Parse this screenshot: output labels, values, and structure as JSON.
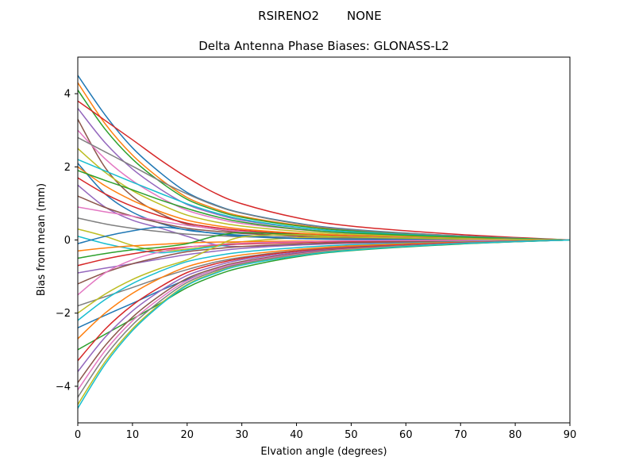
{
  "figure": {
    "suptitle_left": "RSIRENO2",
    "suptitle_right": "NONE"
  },
  "chart_data": {
    "type": "line",
    "suptitle": "RSIRENO2        NONE",
    "title": "Delta Antenna Phase Biases: GLONASS-L2",
    "xlabel": "Elvation angle (degrees)",
    "ylabel": "Bias from mean (mm)",
    "xlim": [
      0,
      90
    ],
    "ylim": [
      -5,
      5
    ],
    "xticks": [
      0,
      10,
      20,
      30,
      40,
      50,
      60,
      70,
      80,
      90
    ],
    "yticks": [
      -4,
      -2,
      0,
      2,
      4
    ],
    "grid": false,
    "legend": "none",
    "x": [
      0,
      5,
      10,
      15,
      20,
      25,
      30,
      40,
      50,
      70,
      90
    ],
    "series": [
      {
        "color": "#1f77b4",
        "values": [
          4.5,
          3.42,
          2.52,
          1.85,
          1.3,
          0.97,
          0.74,
          0.46,
          0.29,
          0.11,
          0
        ]
      },
      {
        "color": "#ff7f0e",
        "values": [
          4.3,
          3.18,
          2.32,
          1.68,
          1.16,
          0.86,
          0.65,
          0.41,
          0.26,
          0.09,
          0
        ]
      },
      {
        "color": "#2ca02c",
        "values": [
          4.1,
          3.03,
          2.21,
          1.6,
          1.11,
          0.82,
          0.62,
          0.39,
          0.25,
          0.09,
          0
        ]
      },
      {
        "color": "#d62728",
        "values": [
          3.8,
          3.27,
          2.74,
          2.2,
          1.71,
          1.29,
          0.99,
          0.61,
          0.38,
          0.15,
          0
        ]
      },
      {
        "color": "#9467bd",
        "values": [
          3.6,
          2.66,
          1.94,
          1.4,
          0.97,
          0.72,
          0.54,
          0.34,
          0.22,
          0.08,
          0
        ]
      },
      {
        "color": "#8c564b",
        "values": [
          3.3,
          1.98,
          1.19,
          0.73,
          0.43,
          0.3,
          0.2,
          0.1,
          0.05,
          0.02,
          0
        ]
      },
      {
        "color": "#e377c2",
        "values": [
          3.0,
          2.22,
          1.62,
          1.17,
          0.81,
          0.6,
          0.45,
          0.29,
          0.18,
          0.07,
          0
        ]
      },
      {
        "color": "#7f7f7f",
        "values": [
          2.8,
          2.41,
          2.02,
          1.62,
          1.26,
          0.95,
          0.73,
          0.45,
          0.28,
          0.11,
          0
        ]
      },
      {
        "color": "#bcbd22",
        "values": [
          2.5,
          1.85,
          1.35,
          0.98,
          0.68,
          0.5,
          0.38,
          0.24,
          0.15,
          0.06,
          0
        ]
      },
      {
        "color": "#17becf",
        "values": [
          2.2,
          1.89,
          1.58,
          1.28,
          0.99,
          0.75,
          0.57,
          0.35,
          0.22,
          0.09,
          0
        ]
      },
      {
        "color": "#1f77b4",
        "values": [
          2.1,
          1.26,
          0.76,
          0.46,
          0.27,
          0.19,
          0.13,
          0.06,
          0.03,
          0.01,
          0
        ]
      },
      {
        "color": "#ff7f0e",
        "values": [
          2.0,
          1.48,
          1.08,
          0.78,
          0.54,
          0.4,
          0.3,
          0.19,
          0.12,
          0.04,
          0
        ]
      },
      {
        "color": "#2ca02c",
        "values": [
          1.9,
          1.63,
          1.37,
          1.1,
          0.86,
          0.65,
          0.49,
          0.3,
          0.19,
          0.08,
          0
        ]
      },
      {
        "color": "#d62728",
        "values": [
          1.7,
          1.26,
          0.92,
          0.66,
          0.46,
          0.34,
          0.26,
          0.16,
          0.1,
          0.04,
          0
        ]
      },
      {
        "color": "#9467bd",
        "values": [
          1.5,
          0.9,
          0.54,
          0.33,
          0.1,
          -0.12,
          -0.18,
          -0.12,
          -0.06,
          -0.02,
          0
        ]
      },
      {
        "color": "#8c564b",
        "values": [
          1.2,
          0.89,
          0.65,
          0.47,
          0.32,
          0.24,
          0.18,
          0.11,
          0.07,
          0.03,
          0
        ]
      },
      {
        "color": "#e377c2",
        "values": [
          0.9,
          0.77,
          0.65,
          0.52,
          0.4,
          0.31,
          0.23,
          0.14,
          0.09,
          0.04,
          0
        ]
      },
      {
        "color": "#7f7f7f",
        "values": [
          0.6,
          0.44,
          0.32,
          0.23,
          0.16,
          0.12,
          0.09,
          0.06,
          0.04,
          0.01,
          0
        ]
      },
      {
        "color": "#bcbd22",
        "values": [
          0.3,
          0.1,
          -0.15,
          -0.3,
          -0.25,
          -0.15,
          -0.05,
          0.06,
          0.08,
          0.03,
          0
        ]
      },
      {
        "color": "#17becf",
        "values": [
          0.1,
          -0.1,
          -0.25,
          -0.35,
          -0.28,
          -0.18,
          -0.1,
          -0.04,
          -0.02,
          -0.01,
          0
        ]
      },
      {
        "color": "#1f77b4",
        "values": [
          -0.1,
          0.1,
          0.25,
          0.35,
          0.28,
          0.18,
          0.1,
          0.04,
          0.02,
          0.01,
          0
        ]
      },
      {
        "color": "#ff7f0e",
        "values": [
          -0.3,
          -0.22,
          -0.16,
          -0.12,
          -0.08,
          -0.06,
          -0.05,
          -0.03,
          -0.02,
          -0.01,
          0
        ]
      },
      {
        "color": "#2ca02c",
        "values": [
          -0.5,
          -0.37,
          -0.27,
          -0.2,
          -0.1,
          0.1,
          0.2,
          0.15,
          0.08,
          0.03,
          0
        ]
      },
      {
        "color": "#d62728",
        "values": [
          -0.7,
          -0.52,
          -0.38,
          -0.27,
          -0.19,
          -0.14,
          -0.11,
          -0.07,
          -0.04,
          -0.02,
          0
        ]
      },
      {
        "color": "#9467bd",
        "values": [
          -0.9,
          -0.77,
          -0.65,
          -0.52,
          -0.4,
          -0.31,
          -0.23,
          -0.14,
          -0.09,
          -0.04,
          0
        ]
      },
      {
        "color": "#8c564b",
        "values": [
          -1.2,
          -0.89,
          -0.65,
          -0.47,
          -0.32,
          -0.24,
          -0.18,
          -0.11,
          -0.07,
          -0.03,
          0
        ]
      },
      {
        "color": "#e377c2",
        "values": [
          -1.5,
          -0.9,
          -0.54,
          -0.33,
          -0.2,
          -0.13,
          -0.09,
          -0.05,
          -0.02,
          -0.01,
          0
        ]
      },
      {
        "color": "#7f7f7f",
        "values": [
          -1.8,
          -1.55,
          -1.3,
          -1.04,
          -0.81,
          -0.61,
          -0.47,
          -0.29,
          -0.18,
          -0.07,
          0
        ]
      },
      {
        "color": "#bcbd22",
        "values": [
          -2.0,
          -1.48,
          -1.08,
          -0.78,
          -0.54,
          -0.2,
          0.08,
          0.14,
          0.08,
          0.03,
          0
        ]
      },
      {
        "color": "#17becf",
        "values": [
          -2.2,
          -1.63,
          -1.19,
          -0.86,
          -0.59,
          -0.44,
          -0.33,
          -0.21,
          -0.13,
          -0.05,
          0
        ]
      },
      {
        "color": "#1f77b4",
        "values": [
          -2.4,
          -2.06,
          -1.73,
          -1.39,
          -1.08,
          -0.82,
          -0.62,
          -0.38,
          -0.24,
          -0.1,
          0
        ]
      },
      {
        "color": "#ff7f0e",
        "values": [
          -2.7,
          -2.0,
          -1.46,
          -1.05,
          -0.73,
          -0.54,
          -0.41,
          -0.26,
          -0.16,
          -0.06,
          0
        ]
      },
      {
        "color": "#2ca02c",
        "values": [
          -3.0,
          -2.58,
          -2.16,
          -1.74,
          -1.3,
          -0.98,
          -0.75,
          -0.46,
          -0.29,
          -0.11,
          0
        ]
      },
      {
        "color": "#d62728",
        "values": [
          -3.3,
          -2.44,
          -1.78,
          -1.29,
          -0.89,
          -0.66,
          -0.5,
          -0.31,
          -0.2,
          -0.07,
          0
        ]
      },
      {
        "color": "#9467bd",
        "values": [
          -3.6,
          -2.66,
          -1.94,
          -1.4,
          -0.97,
          -0.72,
          -0.54,
          -0.34,
          -0.22,
          -0.08,
          0
        ]
      },
      {
        "color": "#8c564b",
        "values": [
          -3.9,
          -2.89,
          -2.11,
          -1.52,
          -1.05,
          -0.78,
          -0.59,
          -0.37,
          -0.23,
          -0.09,
          0
        ]
      },
      {
        "color": "#e377c2",
        "values": [
          -4.1,
          -3.03,
          -2.21,
          -1.6,
          -1.11,
          -0.82,
          -0.62,
          -0.39,
          -0.25,
          -0.09,
          0
        ]
      },
      {
        "color": "#7f7f7f",
        "values": [
          -4.3,
          -3.18,
          -2.32,
          -1.68,
          -1.16,
          -0.86,
          -0.65,
          -0.41,
          -0.26,
          -0.09,
          0
        ]
      },
      {
        "color": "#bcbd22",
        "values": [
          -4.5,
          -3.33,
          -2.43,
          -1.76,
          -1.22,
          -0.9,
          -0.68,
          -0.43,
          -0.27,
          -0.1,
          0
        ]
      },
      {
        "color": "#17becf",
        "values": [
          -4.6,
          -3.4,
          -2.48,
          -1.79,
          -1.24,
          -0.92,
          -0.69,
          -0.44,
          -0.28,
          -0.1,
          0
        ]
      }
    ]
  }
}
